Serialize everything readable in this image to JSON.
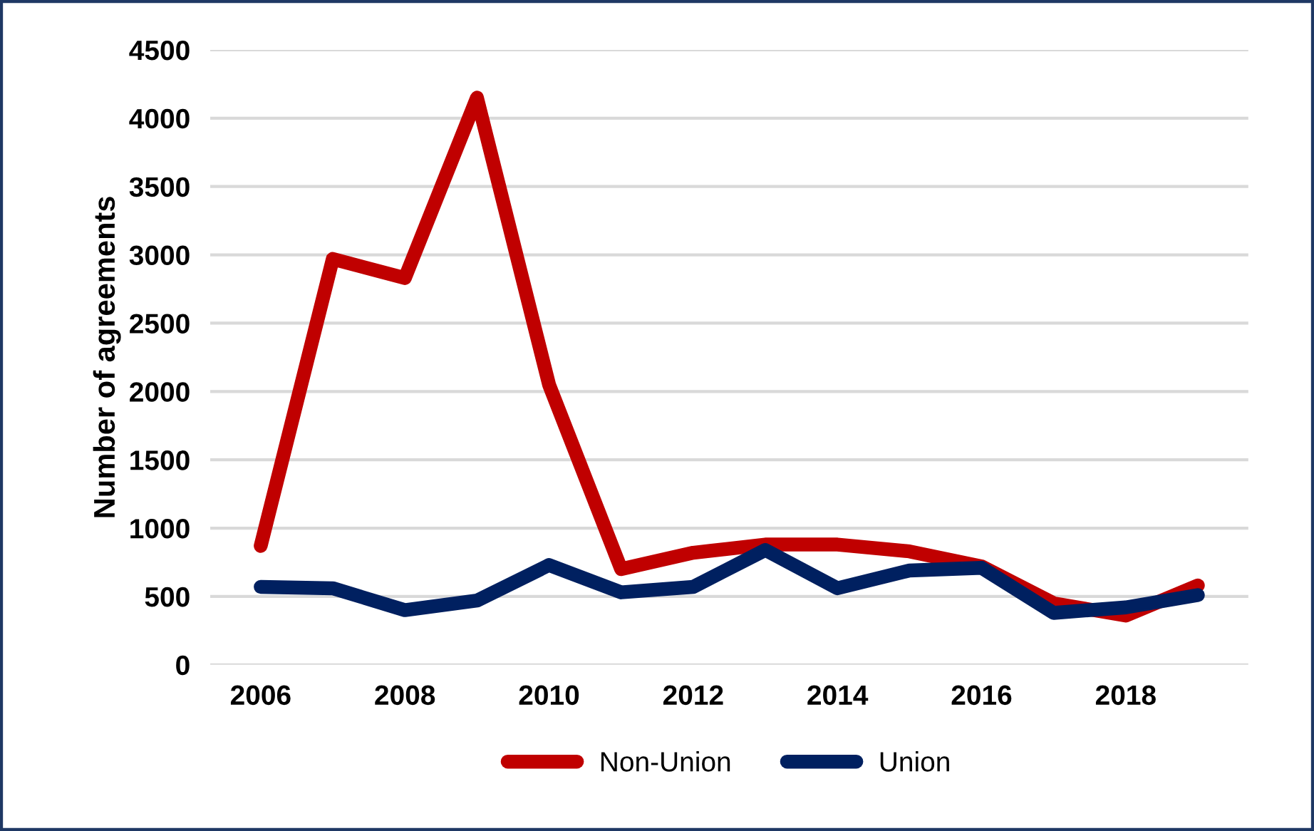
{
  "chart_data": {
    "type": "line",
    "ylabel": "Number of agreements",
    "x": [
      2006,
      2007,
      2008,
      2009,
      2010,
      2011,
      2012,
      2013,
      2014,
      2015,
      2016,
      2017,
      2018,
      2019
    ],
    "series": [
      {
        "name": "Non-Union",
        "color": "#c00000",
        "values": [
          870,
          2970,
          2830,
          4150,
          2050,
          700,
          820,
          880,
          880,
          830,
          720,
          450,
          360,
          580
        ]
      },
      {
        "name": "Union",
        "color": "#002060",
        "values": [
          570,
          560,
          400,
          470,
          730,
          530,
          570,
          840,
          560,
          690,
          710,
          380,
          420,
          510
        ]
      }
    ],
    "xlim": [
      2005.3,
      2019.7
    ],
    "xticks": [
      2006,
      2008,
      2010,
      2012,
      2014,
      2016,
      2018
    ],
    "ylim": [
      0,
      4500
    ],
    "yticks": [
      0,
      500,
      1000,
      1500,
      2000,
      2500,
      3000,
      3500,
      4000,
      4500
    ],
    "grid": "y",
    "legend": "bottom",
    "marker": "none",
    "line_style": "solid"
  }
}
